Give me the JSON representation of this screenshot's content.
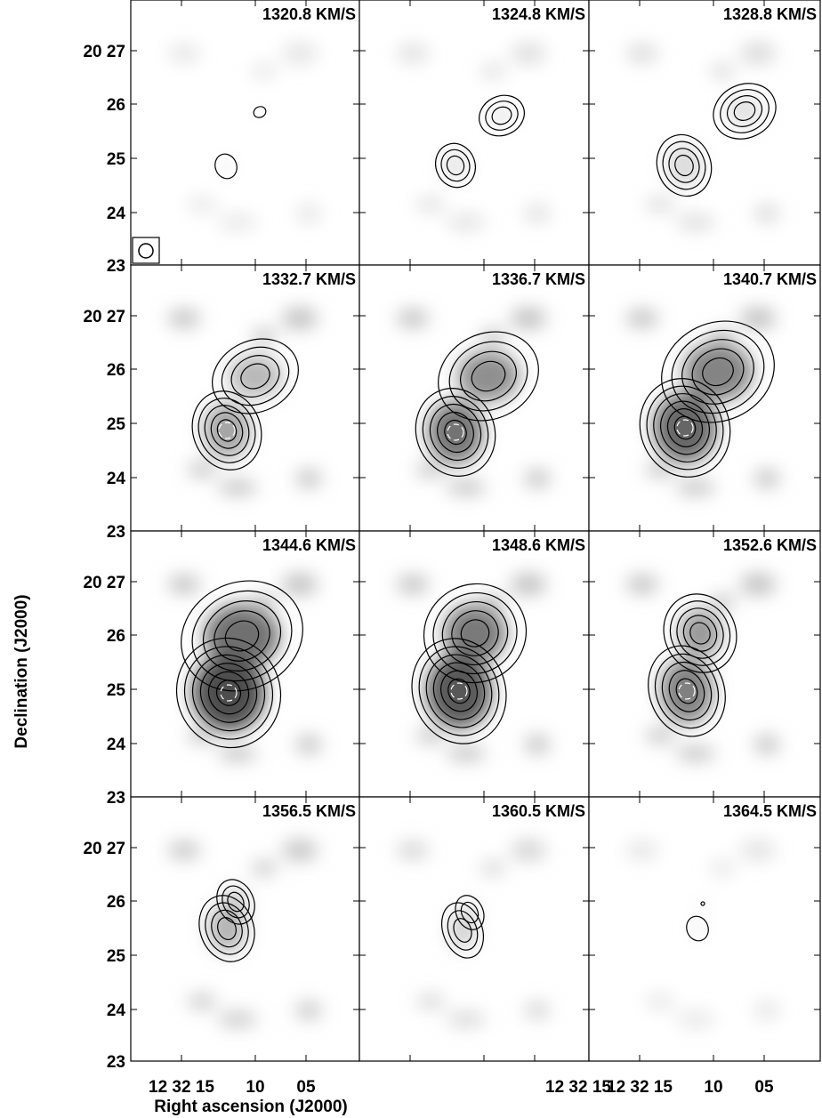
{
  "chart_data": {
    "type": "heatmap",
    "description_kind": "channel maps (greyscale with contour overlay)",
    "xlabel": "Right ascension (J2000)",
    "ylabel": "Declination (J2000)",
    "xaxis_ticks": [
      "12 32 15",
      "10",
      "05"
    ],
    "yaxis_first_label": "20 27",
    "yaxis_ticks": [
      "26",
      "25",
      "24",
      "23"
    ],
    "colormap": "greyscale",
    "contour_color": "#000000",
    "peak_contour_color": "#ffffff",
    "beam_shown": true,
    "panels": [
      {
        "velocity": 1320.8,
        "label": "1320.8 KM/S"
      },
      {
        "velocity": 1324.8,
        "label": "1324.8 KM/S"
      },
      {
        "velocity": 1328.8,
        "label": "1328.8 KM/S"
      },
      {
        "velocity": 1332.7,
        "label": "1332.7 KM/S"
      },
      {
        "velocity": 1336.7,
        "label": "1336.7 KM/S"
      },
      {
        "velocity": 1340.7,
        "label": "1340.7 KM/S"
      },
      {
        "velocity": 1344.6,
        "label": "1344.6 KM/S"
      },
      {
        "velocity": 1348.6,
        "label": "1348.6 KM/S"
      },
      {
        "velocity": 1352.6,
        "label": "1352.6 KM/S"
      },
      {
        "velocity": 1356.5,
        "label": "1356.5 KM/S"
      },
      {
        "velocity": 1360.5,
        "label": "1360.5 KM/S"
      },
      {
        "velocity": 1364.5,
        "label": "1364.5 KM/S"
      }
    ]
  }
}
